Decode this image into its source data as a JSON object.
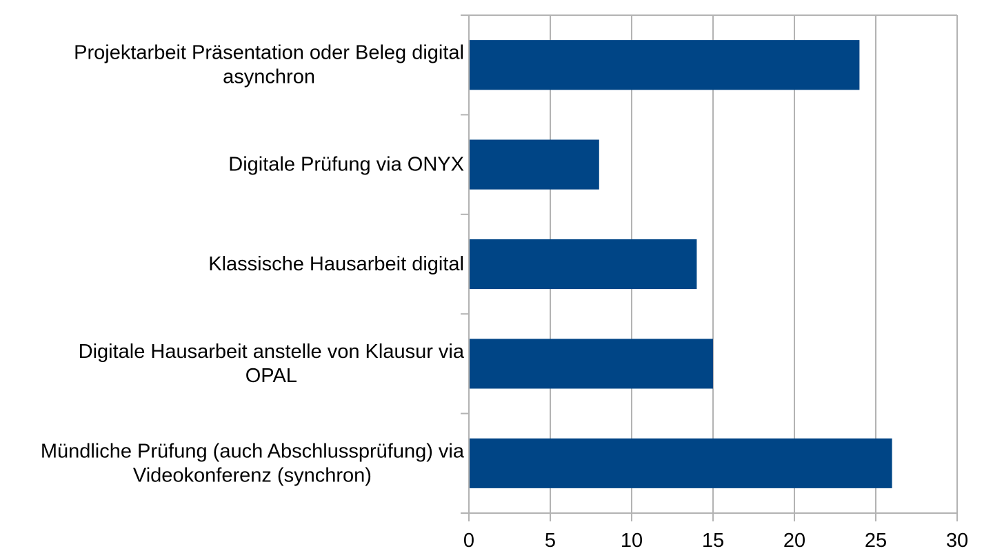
{
  "chart_data": {
    "type": "bar",
    "orientation": "horizontal",
    "categories": [
      [
        "Projektarbeit Präsentation oder Beleg digital",
        "asynchron"
      ],
      [
        "Digitale Prüfung via ONYX"
      ],
      [
        "Klassische Hausarbeit digital"
      ],
      [
        "Digitale Hausarbeit anstelle von Klausur via",
        "OPAL"
      ],
      [
        "Mündliche Prüfung (auch Abschlussprüfung) via",
        "Videokonferenz (synchron)"
      ]
    ],
    "values": [
      24,
      8,
      14,
      15,
      26
    ],
    "xlim": [
      0,
      30
    ],
    "xticks": [
      0,
      5,
      10,
      15,
      20,
      25,
      30
    ],
    "grid": true,
    "legend": "none",
    "colors": {
      "bar": "#004586",
      "grid": "#b3b3b3",
      "text": "#000000"
    }
  }
}
